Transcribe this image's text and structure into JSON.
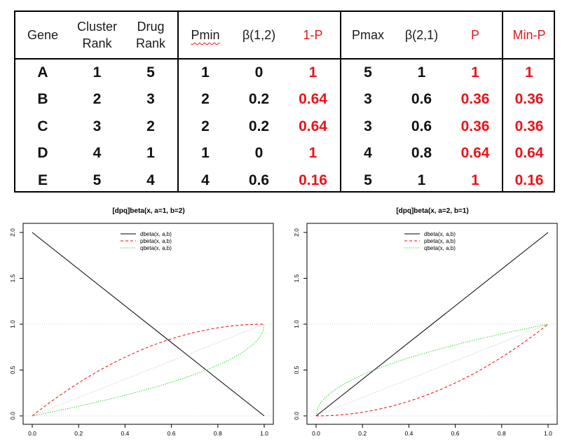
{
  "table": {
    "headers": [
      {
        "key": "gene",
        "label": "Gene",
        "color": "#1a1a1a"
      },
      {
        "key": "cluster_rank",
        "label": "Cluster\nRank",
        "color": "#1a1a1a"
      },
      {
        "key": "drug_rank",
        "label": "Drug\nRank",
        "color": "#1a1a1a"
      },
      {
        "key": "pmin",
        "label": "Pmin",
        "color": "#1a1a1a"
      },
      {
        "key": "beta12",
        "label": "β(1,2)",
        "color": "#1a1a1a"
      },
      {
        "key": "one_minus_p",
        "label": "1-P",
        "color": "#e0191c"
      },
      {
        "key": "pmax",
        "label": "Pmax",
        "color": "#1a1a1a"
      },
      {
        "key": "beta21",
        "label": "β(2,1)",
        "color": "#1a1a1a"
      },
      {
        "key": "p",
        "label": "P",
        "color": "#e0191c"
      },
      {
        "key": "min_p",
        "label": "Min-P",
        "color": "#e0191c"
      }
    ],
    "rows": [
      [
        "A",
        "1",
        "5",
        "1",
        "0",
        "1",
        "5",
        "1",
        "1",
        "1"
      ],
      [
        "B",
        "2",
        "3",
        "2",
        "0.2",
        "0.64",
        "3",
        "0.6",
        "0.36",
        "0.36"
      ],
      [
        "C",
        "3",
        "2",
        "2",
        "0.2",
        "0.64",
        "3",
        "0.6",
        "0.36",
        "0.36"
      ],
      [
        "D",
        "4",
        "1",
        "1",
        "0",
        "1",
        "4",
        "0.8",
        "0.64",
        "0.64"
      ],
      [
        "E",
        "5",
        "4",
        "4",
        "0.6",
        "0.16",
        "5",
        "1",
        "1",
        "0.16"
      ]
    ],
    "red_columns": [
      5,
      8,
      9
    ],
    "accent_red": "#e8141a"
  },
  "chart_data": [
    {
      "type": "line",
      "title": "[dpq]beta(x, a=1, b=2)",
      "a": 1,
      "b": 2,
      "xlim": [
        0,
        1
      ],
      "ylim": [
        0,
        2
      ],
      "xticks": [
        "0.0",
        "0.2",
        "0.4",
        "0.6",
        "0.8",
        "1.0"
      ],
      "yticks": [
        "0.0",
        "0.5",
        "1.0",
        "1.5",
        "2.0"
      ],
      "reference_lines": [
        0,
        1
      ],
      "legend_position": "top-center",
      "series": [
        {
          "name": "dbeta(x, a,b)",
          "color": "#000000",
          "dash": "solid",
          "points": [
            [
              0,
              2
            ],
            [
              1,
              0
            ]
          ]
        },
        {
          "name": "pbeta(x, a,b)",
          "color": "#ff0000",
          "dash": "dashed",
          "formula": "1 - (1 - x)^2"
        },
        {
          "name": "qbeta(x, a,b)",
          "color": "#00cd00",
          "dash": "dotted",
          "formula": "1 - sqrt(1 - x)"
        }
      ],
      "diagonal": {
        "points": [
          [
            0,
            0
          ],
          [
            1,
            1
          ]
        ],
        "color": "#bbbbbb"
      }
    },
    {
      "type": "line",
      "title": "[dpq]beta(x, a=2, b=1)",
      "a": 2,
      "b": 1,
      "xlim": [
        0,
        1
      ],
      "ylim": [
        0,
        2
      ],
      "xticks": [
        "0.0",
        "0.2",
        "0.4",
        "0.6",
        "0.8",
        "1.0"
      ],
      "yticks": [
        "0.0",
        "0.5",
        "1.0",
        "1.5",
        "2.0"
      ],
      "reference_lines": [
        0,
        1
      ],
      "legend_position": "top-center",
      "series": [
        {
          "name": "dbeta(x, a,b)",
          "color": "#000000",
          "dash": "solid",
          "points": [
            [
              0,
              0
            ],
            [
              1,
              2
            ]
          ]
        },
        {
          "name": "pbeta(x, a,b)",
          "color": "#ff0000",
          "dash": "dashed",
          "formula": "x^2"
        },
        {
          "name": "qbeta(x, a,b)",
          "color": "#00cd00",
          "dash": "dotted",
          "formula": "sqrt(x)"
        }
      ],
      "diagonal": {
        "points": [
          [
            0,
            0
          ],
          [
            1,
            1
          ]
        ],
        "color": "#bbbbbb"
      }
    }
  ]
}
